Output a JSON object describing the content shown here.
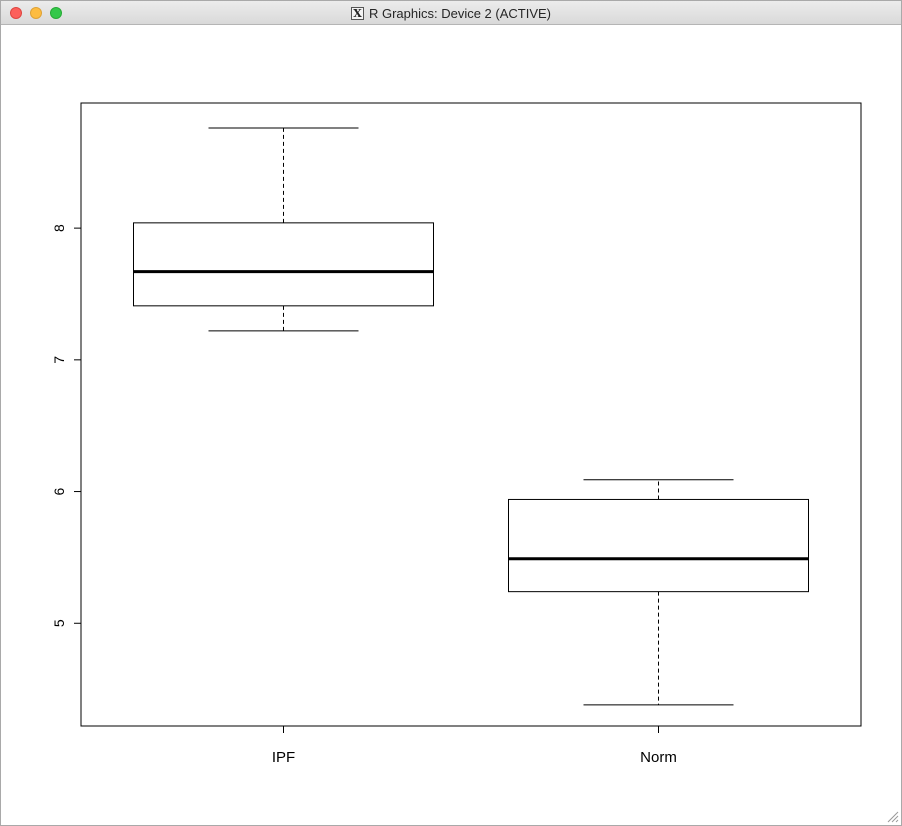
{
  "window": {
    "title": "R Graphics: Device 2 (ACTIVE)",
    "icon": "x11-icon",
    "icon_glyph": "X"
  },
  "chart_data": {
    "type": "boxplot",
    "title": "",
    "xlabel": "",
    "ylabel": "",
    "categories": [
      "IPF",
      "Norm"
    ],
    "boxes": [
      {
        "category": "IPF",
        "whisker_low": 7.22,
        "q1": 7.41,
        "median": 7.67,
        "q3": 8.04,
        "whisker_high": 8.76
      },
      {
        "category": "Norm",
        "whisker_low": 4.38,
        "q1": 5.24,
        "median": 5.49,
        "q3": 5.94,
        "whisker_high": 6.09
      }
    ],
    "yticks": [
      5,
      6,
      7,
      8
    ],
    "ytick_labels": [
      "5",
      "6",
      "7",
      "8"
    ],
    "ylim": [
      4.22,
      8.95
    ],
    "grid": false,
    "legend": "none",
    "colors": {
      "line": "#000000",
      "fill": "#ffffff"
    }
  }
}
